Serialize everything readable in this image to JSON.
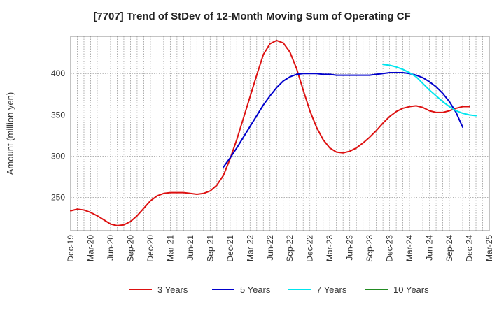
{
  "chart_data": {
    "type": "line",
    "title": "[7707]  Trend of StDev of 12-Month Moving Sum of Operating CF",
    "xlabel": "",
    "ylabel": "Amount (million yen)",
    "x_ticks": [
      "Dec-19",
      "Mar-20",
      "Jun-20",
      "Sep-20",
      "Dec-20",
      "Mar-21",
      "Jun-21",
      "Sep-21",
      "Dec-21",
      "Mar-22",
      "Jun-22",
      "Sep-22",
      "Dec-22",
      "Mar-23",
      "Jun-23",
      "Sep-23",
      "Dec-23",
      "Mar-24",
      "Jun-24",
      "Sep-24",
      "Dec-24",
      "Mar-25"
    ],
    "y_ticks": [
      250,
      300,
      350,
      400
    ],
    "ylim": [
      210,
      445
    ],
    "grid": true,
    "legend_position": "bottom",
    "series": [
      {
        "name": "3 Years",
        "color": "#dd1111",
        "start": "Dec-19",
        "values": [
          234,
          236,
          235,
          232,
          228,
          223,
          218,
          216,
          217,
          221,
          228,
          237,
          246,
          252,
          255,
          256,
          256,
          256,
          255,
          254,
          255,
          258,
          265,
          277,
          297,
          320,
          346,
          372,
          398,
          423,
          436,
          440,
          437,
          426,
          406,
          380,
          355,
          335,
          320,
          310,
          305,
          304,
          306,
          310,
          316,
          323,
          331,
          340,
          348,
          354,
          358,
          360,
          361,
          359,
          355,
          353,
          353,
          355,
          358,
          360,
          360
        ]
      },
      {
        "name": "5 Years",
        "color": "#0000cc",
        "start": "Nov-21",
        "values": [
          287,
          298,
          310,
          323,
          336,
          349,
          362,
          373,
          383,
          391,
          396,
          399,
          400,
          400,
          400,
          399,
          399,
          398,
          398,
          398,
          398,
          398,
          398,
          399,
          400,
          401,
          401,
          401,
          400,
          398,
          395,
          390,
          384,
          376,
          366,
          353,
          335
        ]
      },
      {
        "name": "7 Years",
        "color": "#00e5ee",
        "start": "Nov-23",
        "values": [
          411,
          410,
          408,
          405,
          401,
          396,
          388,
          380,
          373,
          366,
          360,
          355,
          352,
          350,
          349
        ]
      },
      {
        "name": "10 Years",
        "color": "#228b22",
        "start": "Dec-24",
        "values": []
      }
    ]
  }
}
